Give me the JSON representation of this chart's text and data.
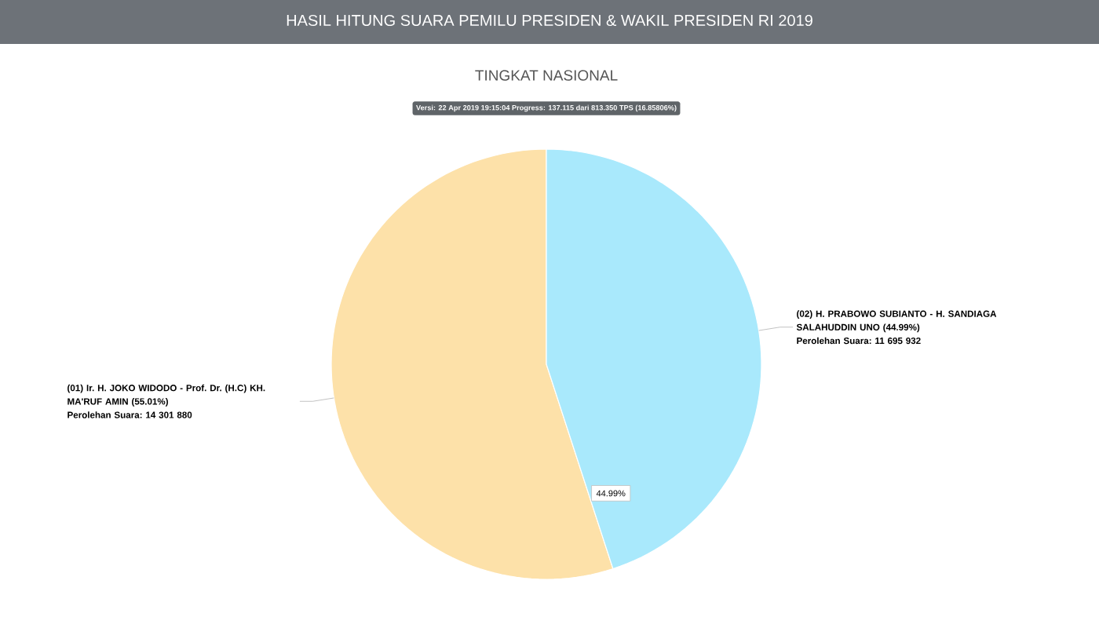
{
  "chart_data": {
    "type": "pie",
    "title": "HASIL HITUNG SUARA PEMILU PRESIDEN & WAKIL PRESIDEN RI 2019",
    "subtitle": "TINGKAT NASIONAL",
    "categories": [
      "(01) Ir. H. JOKO WIDODO - Prof. Dr. (H.C) KH. MA'RUF AMIN (55.01%)",
      "(02) H. PRABOWO SUBIANTO - H. SANDIAGA SALAHUDDIN UNO (44.99%)"
    ],
    "values": [
      14301880,
      11695932
    ],
    "value_labels": [
      "Perolehan Suara: 14 301 880",
      "Perolehan Suara: 11 695 932"
    ],
    "colors": [
      "#fde1a9",
      "#a9e9fc"
    ],
    "annotations": [
      "Versi: 22 Apr 2019 19:15:04 Progress: 137.115 dari 813.350 TPS (16.85806%)",
      "44.99%"
    ]
  }
}
